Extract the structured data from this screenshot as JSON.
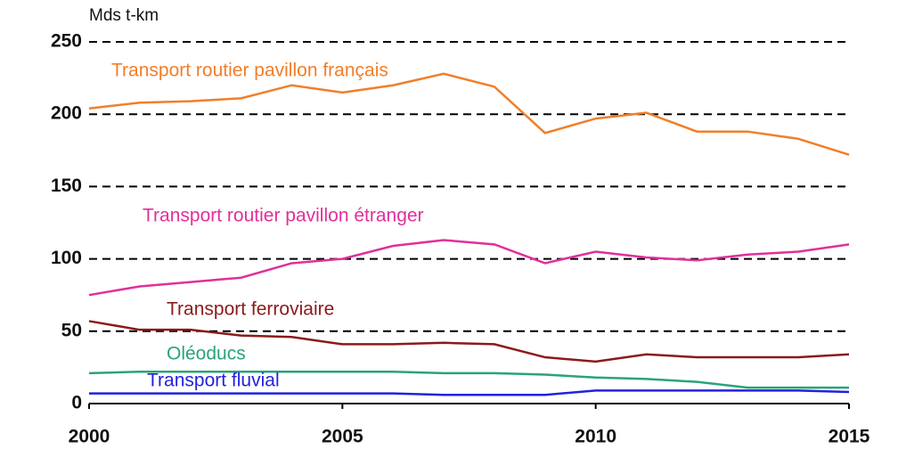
{
  "chart_data": {
    "type": "line",
    "y_label": "Mds t-km",
    "x": [
      2000,
      2001,
      2002,
      2003,
      2004,
      2005,
      2006,
      2007,
      2008,
      2009,
      2010,
      2011,
      2012,
      2013,
      2014,
      2015
    ],
    "xlim": [
      2000,
      2015
    ],
    "xticks": [
      2000,
      2005,
      2010,
      2015
    ],
    "ylim": [
      0,
      250
    ],
    "yticks": [
      0,
      50,
      100,
      150,
      200,
      250
    ],
    "grid": true,
    "series": [
      {
        "name": "Transport routier pavillon français",
        "color": "#f07f2a",
        "values": [
          204,
          208,
          209,
          211,
          220,
          215,
          220,
          228,
          219,
          187,
          197,
          201,
          188,
          188,
          183,
          172
        ]
      },
      {
        "name": "Transport routier pavillon étranger",
        "color": "#e0309a",
        "values": [
          75,
          81,
          84,
          87,
          97,
          100,
          109,
          113,
          110,
          97,
          105,
          101,
          99,
          103,
          105,
          110
        ]
      },
      {
        "name": "Transport ferroviaire",
        "color": "#8b1a1a",
        "values": [
          57,
          51,
          51,
          47,
          46,
          41,
          41,
          42,
          41,
          32,
          29,
          34,
          32,
          32,
          32,
          34
        ]
      },
      {
        "name": "Oléoducs",
        "color": "#2aa37a",
        "values": [
          21,
          22,
          22,
          22,
          22,
          22,
          22,
          21,
          21,
          20,
          18,
          17,
          15,
          11,
          11,
          11
        ]
      },
      {
        "name": "Transport fluvial",
        "color": "#2222dd",
        "values": [
          7,
          7,
          7,
          7,
          7,
          7,
          7,
          6,
          6,
          6,
          9,
          9,
          9,
          9,
          9,
          8
        ]
      }
    ]
  }
}
